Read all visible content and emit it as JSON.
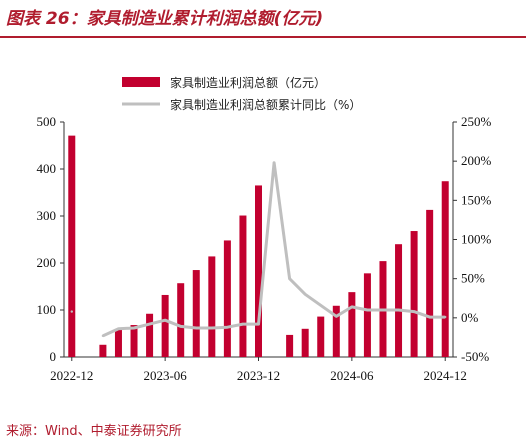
{
  "figure": {
    "title": "图表 26：家具制造业累计利润总额(亿元)",
    "source": "来源：Wind、中泰证券研究所"
  },
  "colors": {
    "bar": "#C2002F",
    "line": "#BFBFBF",
    "title": "#B01C2E"
  },
  "chart_data": {
    "type": "bar+line",
    "x": [
      "2022-12",
      "2023-01",
      "2023-02",
      "2023-03",
      "2023-04",
      "2023-05",
      "2023-06",
      "2023-07",
      "2023-08",
      "2023-09",
      "2023-10",
      "2023-11",
      "2023-12",
      "2024-01",
      "2024-02",
      "2024-03",
      "2024-04",
      "2024-05",
      "2024-06",
      "2024-07",
      "2024-08",
      "2024-09",
      "2024-10",
      "2024-11",
      "2024-12"
    ],
    "x_tick_labels": [
      "2022-12",
      "2023-06",
      "2023-12",
      "2024-06",
      "2024-12"
    ],
    "series": [
      {
        "name": "家具制造业利润总额（亿元）",
        "type": "bar",
        "axis": "left",
        "values": [
          471,
          null,
          26,
          58,
          68,
          92,
          132,
          157,
          185,
          214,
          248,
          301,
          365,
          null,
          47,
          60,
          86,
          109,
          138,
          178,
          204,
          240,
          268,
          313,
          374
        ]
      },
      {
        "name": "家具制造业利润总额累计同比（%）",
        "type": "line",
        "axis": "right",
        "values": [
          8,
          null,
          -23,
          -14,
          -13,
          -8,
          -3,
          -11,
          -13,
          -13,
          -12,
          -8,
          -8,
          198,
          50,
          30,
          16,
          2,
          14,
          10,
          10,
          10,
          8,
          1,
          1
        ]
      }
    ],
    "y_left": {
      "min": 0,
      "max": 500,
      "ticks": [
        0,
        100,
        200,
        300,
        400,
        500
      ]
    },
    "y_right": {
      "min": -50,
      "max": 250,
      "ticks": [
        "-50%",
        "0%",
        "50%",
        "100%",
        "150%",
        "200%",
        "250%"
      ]
    },
    "legend_position": "top-center",
    "grid": false
  }
}
